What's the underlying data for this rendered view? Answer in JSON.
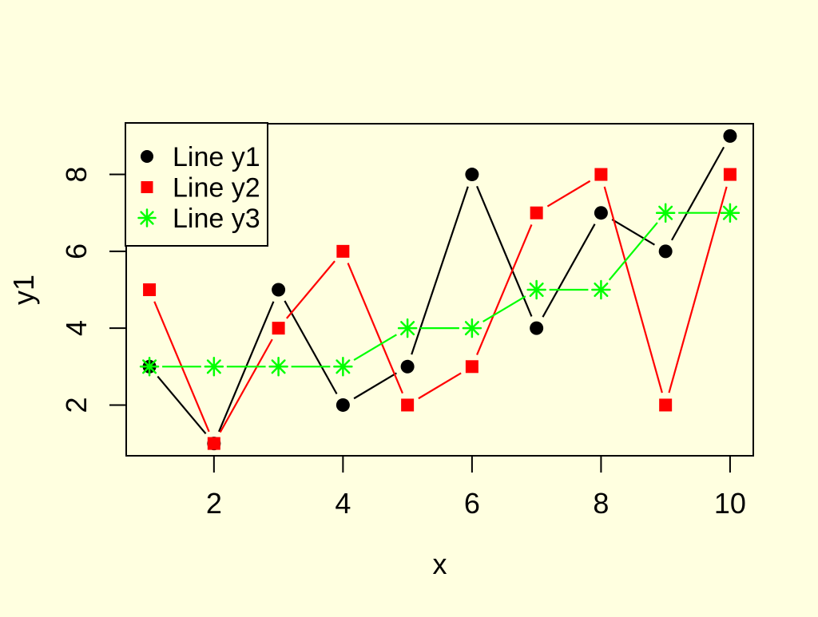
{
  "page": {
    "background": "#FFFFE0"
  },
  "chart_data": {
    "type": "line",
    "x": [
      1,
      2,
      3,
      4,
      5,
      6,
      7,
      8,
      9,
      10
    ],
    "series": [
      {
        "name": "Line y1",
        "color": "#000000",
        "marker": "circle",
        "values": [
          3,
          1,
          5,
          2,
          3,
          8,
          4,
          7,
          6,
          9
        ]
      },
      {
        "name": "Line y2",
        "color": "#FF0000",
        "marker": "square",
        "values": [
          5,
          1,
          4,
          6,
          2,
          3,
          7,
          8,
          2,
          8
        ]
      },
      {
        "name": "Line y3",
        "color": "#00FF00",
        "marker": "asterisk",
        "values": [
          3,
          3,
          3,
          3,
          4,
          4,
          5,
          5,
          7,
          7
        ]
      }
    ],
    "title": "",
    "xlabel": "x",
    "ylabel": "y1",
    "x_ticks": [
      2,
      4,
      6,
      8,
      10
    ],
    "y_ticks": [
      2,
      4,
      6,
      8
    ],
    "xlim": [
      0.64,
      10.36
    ],
    "ylim": [
      0.68,
      9.32
    ],
    "grid": false,
    "point_and_line": true,
    "background": "#FFFFE0",
    "axis_color": "#000000",
    "legend": {
      "position": "topleft",
      "entries": [
        "Line y1",
        "Line y2",
        "Line y3"
      ]
    }
  }
}
